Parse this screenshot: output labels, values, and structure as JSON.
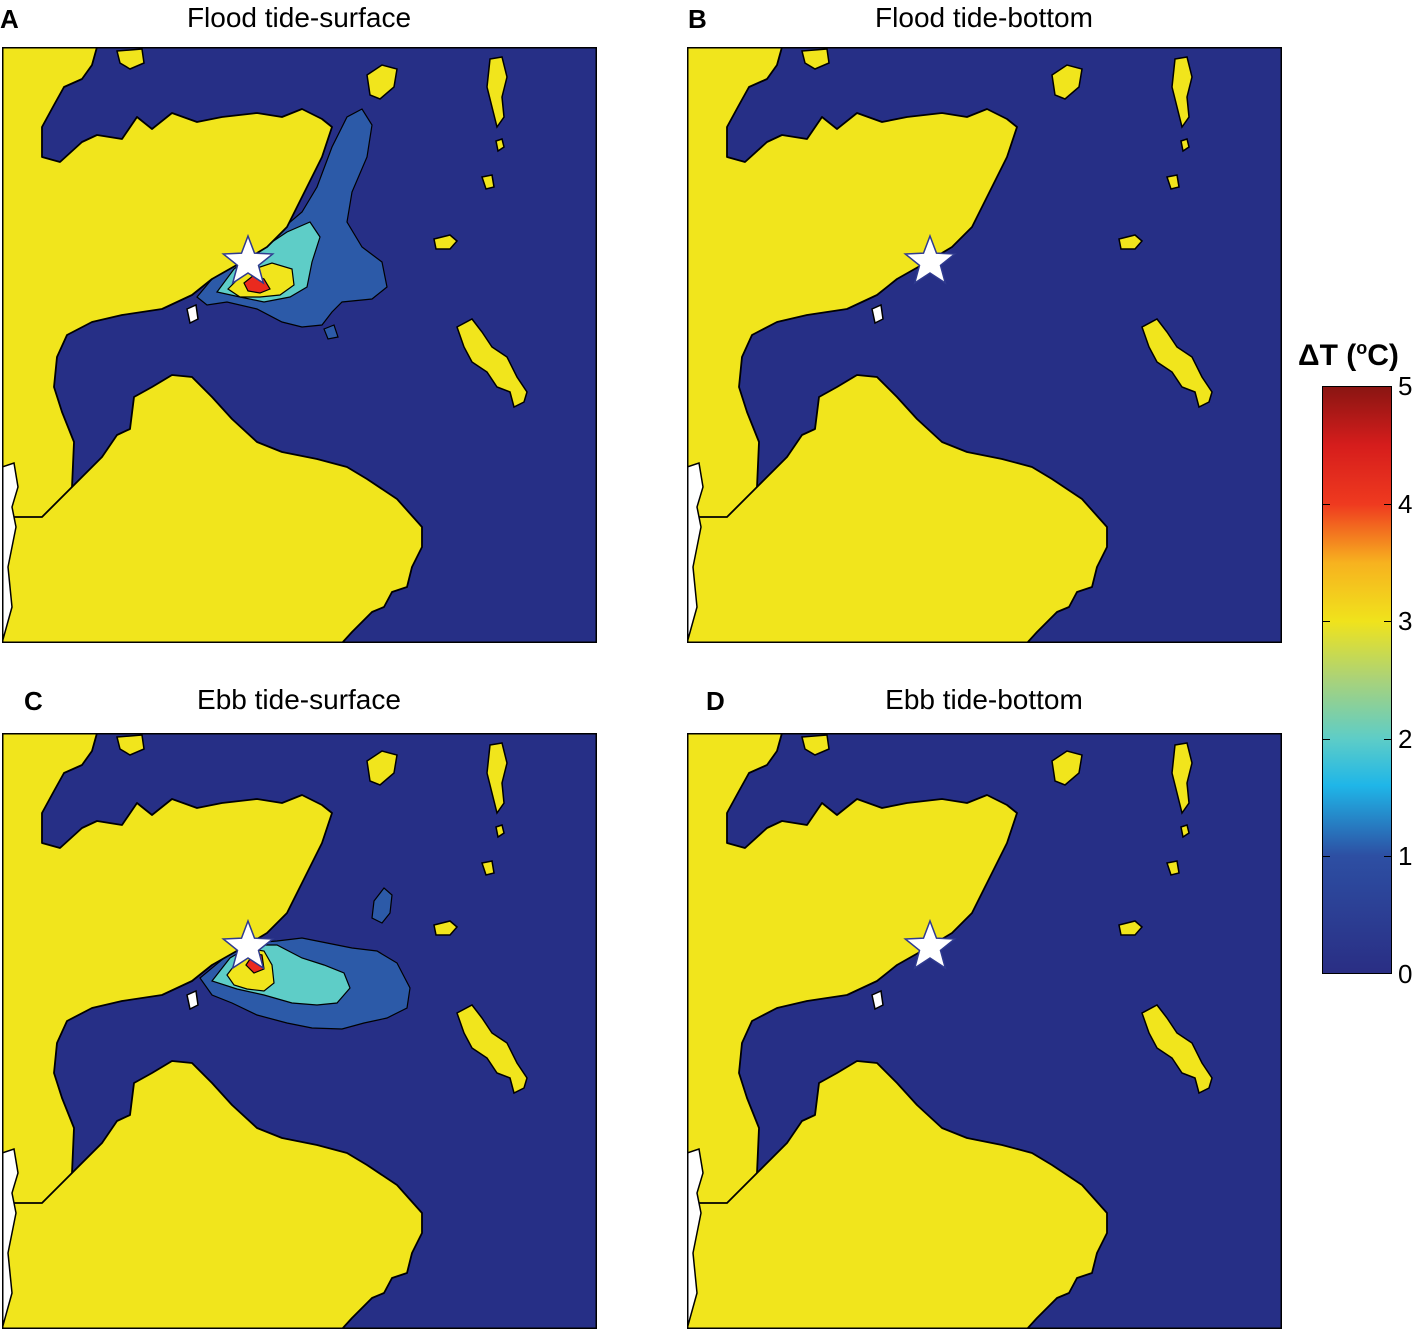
{
  "panels": [
    {
      "letter": "A",
      "title": "Flood tide-surface",
      "plume": "flood"
    },
    {
      "letter": "B",
      "title": "Flood tide-bottom",
      "plume": "none"
    },
    {
      "letter": "C",
      "title": "Ebb tide-surface",
      "plume": "ebb"
    },
    {
      "letter": "D",
      "title": "Ebb tide-bottom",
      "plume": "none"
    }
  ],
  "colorbar": {
    "title_main": "ΔT (",
    "title_sup": "o",
    "title_end": "C)",
    "min": 0,
    "max": 5,
    "ticks": [
      "0",
      "1",
      "2",
      "3",
      "4",
      "5"
    ]
  },
  "colors": {
    "water": "#262f86",
    "land": "#f1e51c",
    "level1": "#2c5aa8",
    "level2": "#5ecdc7",
    "level3": "#f1e51c",
    "level4": "#ea2a1e",
    "marker": "#ffffff"
  },
  "icons": {
    "marker": "star-icon"
  }
}
